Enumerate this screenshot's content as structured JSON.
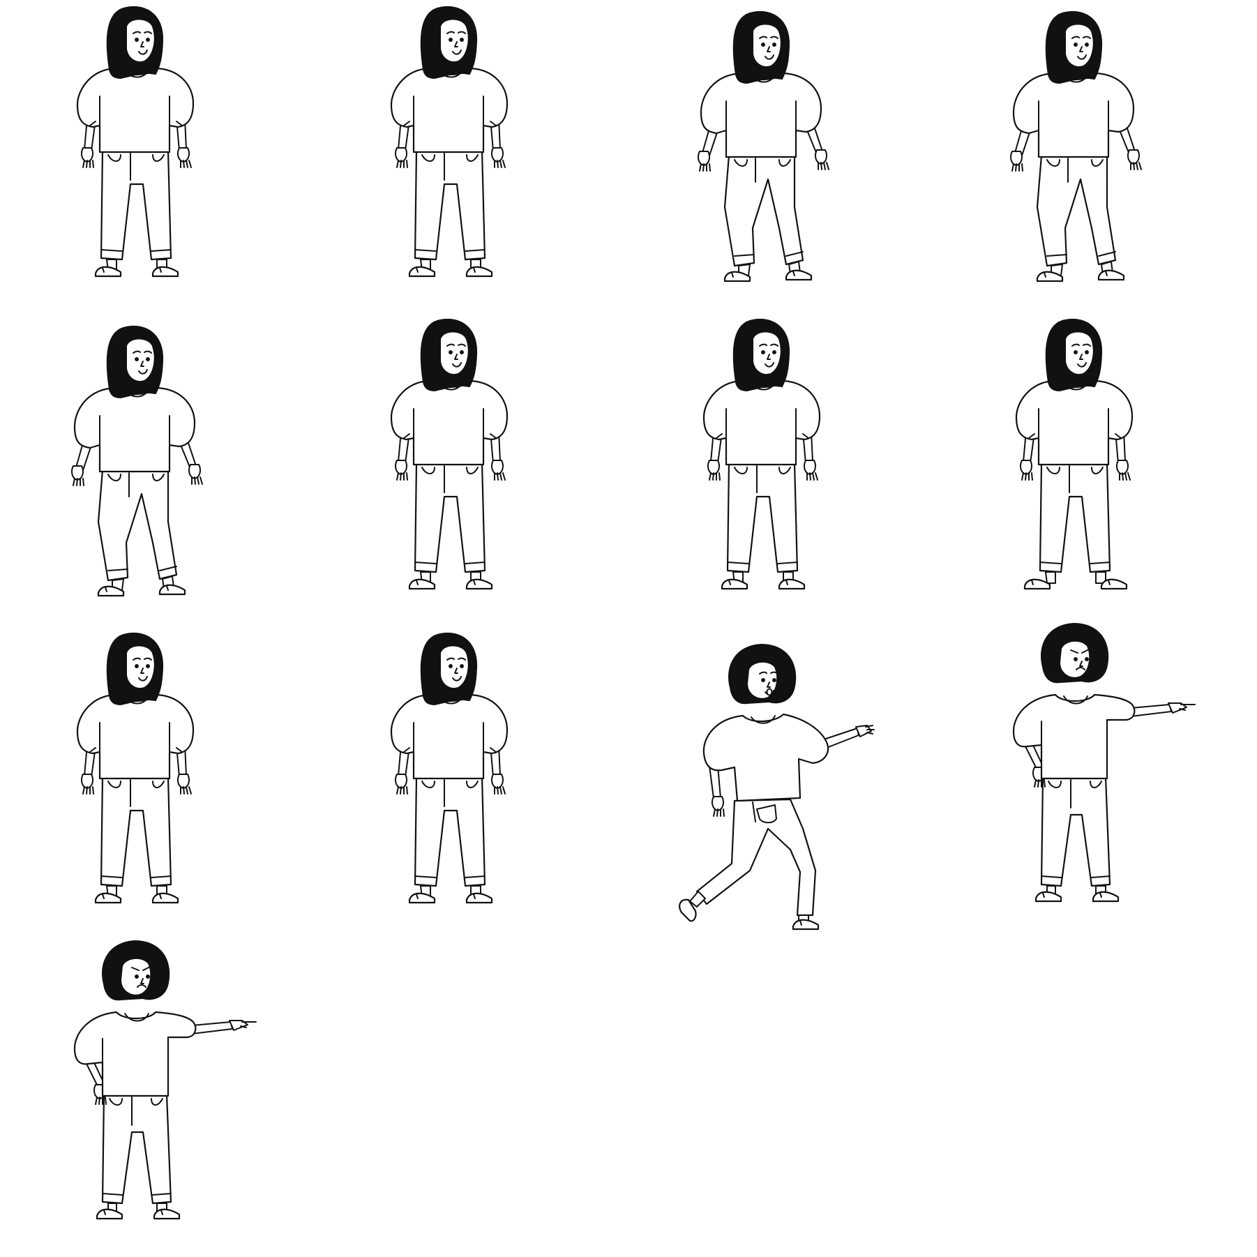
{
  "sheet": {
    "background": "#ffffff",
    "ink": "#111111",
    "figures": [
      {
        "pose": "standing-front"
      },
      {
        "pose": "standing-front"
      },
      {
        "pose": "walking-crossed-legs"
      },
      {
        "pose": "walking-crossed-legs"
      },
      {
        "pose": "walking-crossed-legs"
      },
      {
        "pose": "standing-front"
      },
      {
        "pose": "standing-front"
      },
      {
        "pose": "standing-wide"
      },
      {
        "pose": "standing-front"
      },
      {
        "pose": "standing-front"
      },
      {
        "pose": "lunging-reaching"
      },
      {
        "pose": "pointing-hand-on-hip"
      },
      {
        "pose": "pointing-hand-on-hip"
      }
    ]
  }
}
